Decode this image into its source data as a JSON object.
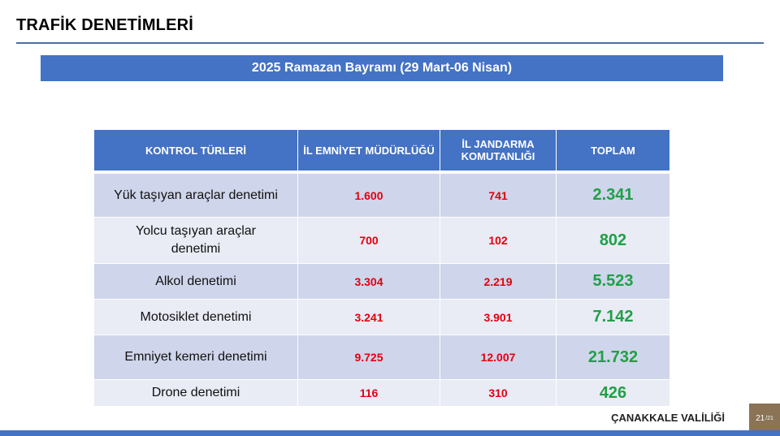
{
  "title": "TRAFİK DENETİMLERİ",
  "banner": "2025 Ramazan Bayramı (29 Mart-06 Nisan)",
  "table": {
    "headers": [
      "KONTROL TÜRLERİ",
      "İL EMNİYET MÜDÜRLÜĞÜ",
      "İL JANDARMA KOMUTANLIĞI",
      "TOPLAM"
    ],
    "rows": [
      {
        "type": "Yük taşıyan araçlar denetimi",
        "police": "1.600",
        "gendarmerie": "741",
        "total": "2.341"
      },
      {
        "type": "Yolcu taşıyan araçlar denetimi",
        "police": "700",
        "gendarmerie": "102",
        "total": "802"
      },
      {
        "type": "Alkol denetimi",
        "police": "3.304",
        "gendarmerie": "2.219",
        "total": "5.523"
      },
      {
        "type": "Motosiklet denetimi",
        "police": "3.241",
        "gendarmerie": "3.901",
        "total": "7.142"
      },
      {
        "type": "Emniyet kemeri denetimi",
        "police": "9.725",
        "gendarmerie": "12.007",
        "total": "21.732"
      },
      {
        "type": "Drone denetimi",
        "police": "116",
        "gendarmerie": "310",
        "total": "426"
      }
    ]
  },
  "footer": {
    "org": "ÇANAKKALE VALİLİĞİ",
    "page": "21",
    "page_total": "/21"
  },
  "colors": {
    "header_blue": "#4472c4",
    "row_dark": "#cfd5ea",
    "row_light": "#e9ebf5",
    "value_red": "#e3000f",
    "total_green": "#1fa046",
    "page_box": "#8b7355"
  }
}
